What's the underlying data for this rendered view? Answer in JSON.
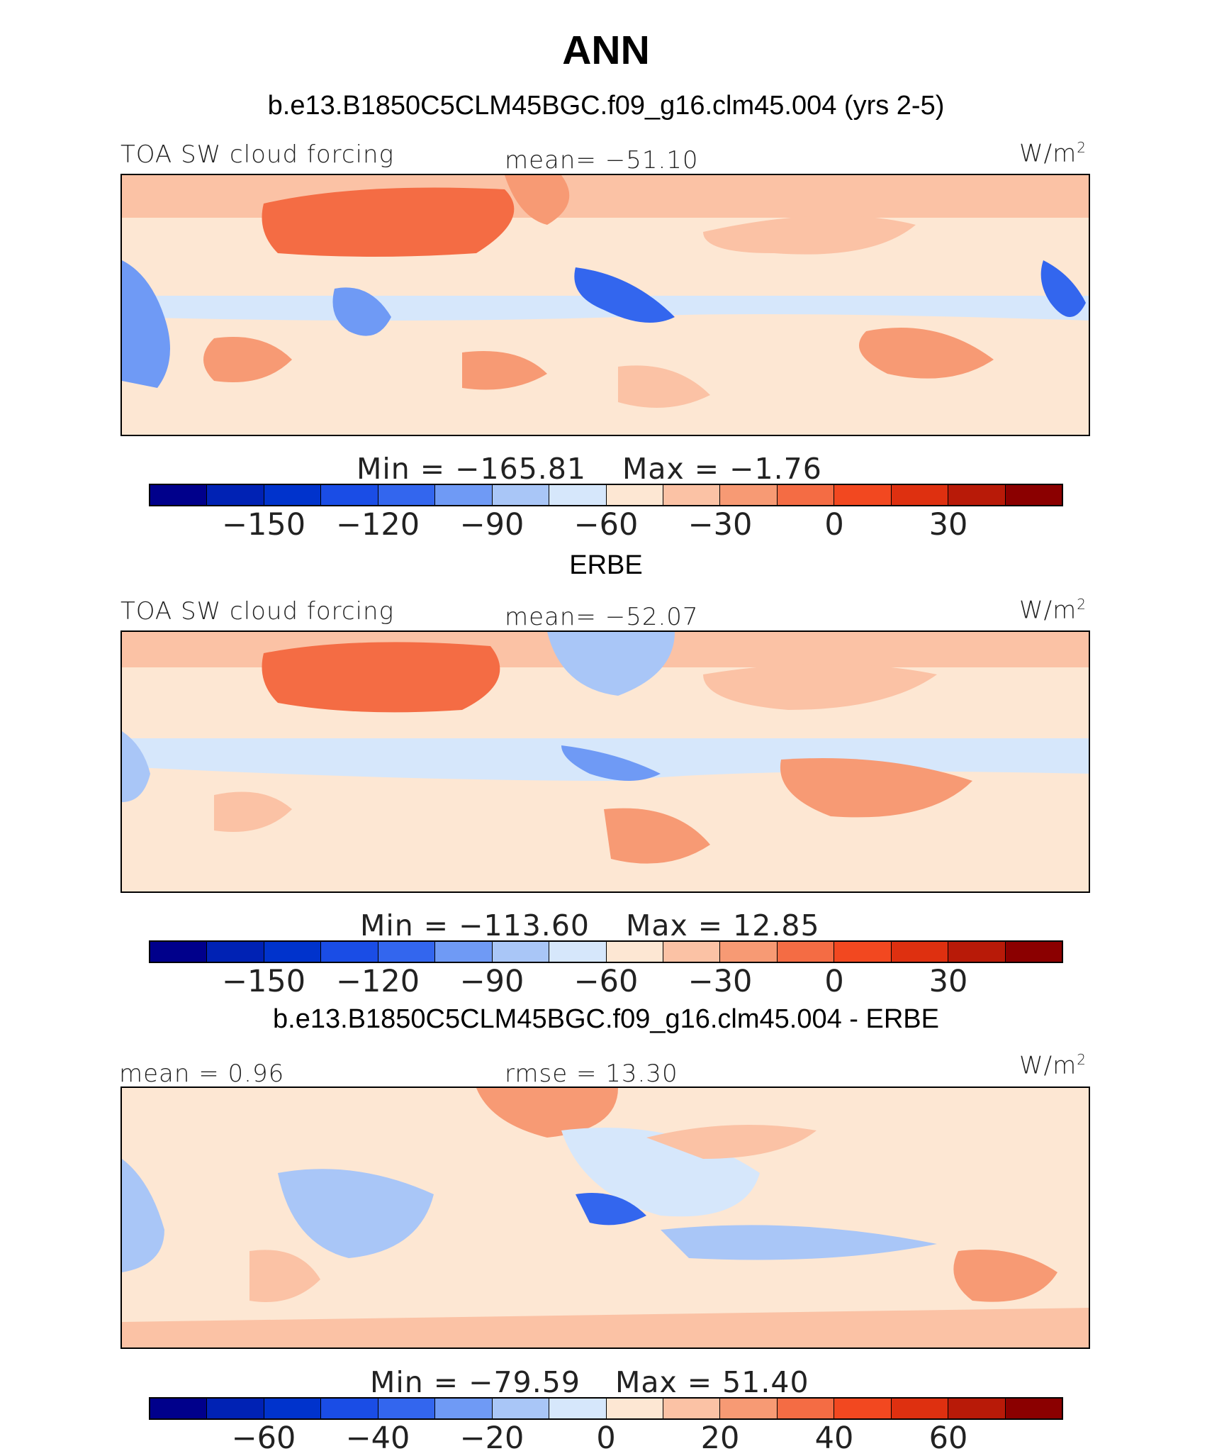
{
  "title": "ANN",
  "colors": [
    "#00008b",
    "#0022b4",
    "#0033cc",
    "#1a4de6",
    "#3366ee",
    "#6f9af5",
    "#a9c6f7",
    "#d6e7fb",
    "#fde7d3",
    "#fbc2a5",
    "#f79a74",
    "#f46c44",
    "#f24820",
    "#de3010",
    "#b81a08",
    "#8b0000"
  ],
  "panels": [
    {
      "subtitle": "b.e13.B1850C5CLM45BGC.f09_g16.clm45.004 (yrs 2-5)",
      "left_label": "TOA SW cloud forcing",
      "center_label": "mean=  −51.10",
      "unit": "W/m",
      "unit_sup": "2",
      "min_label": "Min  =  −165.81",
      "max_label": "Max  =    −1.76",
      "ticks": [
        "−150",
        "−120",
        "−90",
        "−60",
        "−30",
        "0",
        "30"
      ]
    },
    {
      "subtitle": "ERBE",
      "left_label": "TOA SW cloud forcing",
      "center_label": "mean=  −52.07",
      "unit": "W/m",
      "unit_sup": "2",
      "min_label": "Min  =  −113.60",
      "max_label": "Max  =    12.85",
      "ticks": [
        "−150",
        "−120",
        "−90",
        "−60",
        "−30",
        "0",
        "30"
      ]
    },
    {
      "subtitle": "b.e13.B1850C5CLM45BGC.f09_g16.clm45.004 - ERBE",
      "left_label": "mean  =    0.96",
      "center_label": "rmse  =    13.30",
      "unit": "W/m",
      "unit_sup": "2",
      "min_label": "Min  =  −79.59",
      "max_label": "Max  =    51.40",
      "ticks": [
        "−60",
        "−40",
        "−20",
        "0",
        "20",
        "40",
        "60"
      ]
    }
  ]
}
